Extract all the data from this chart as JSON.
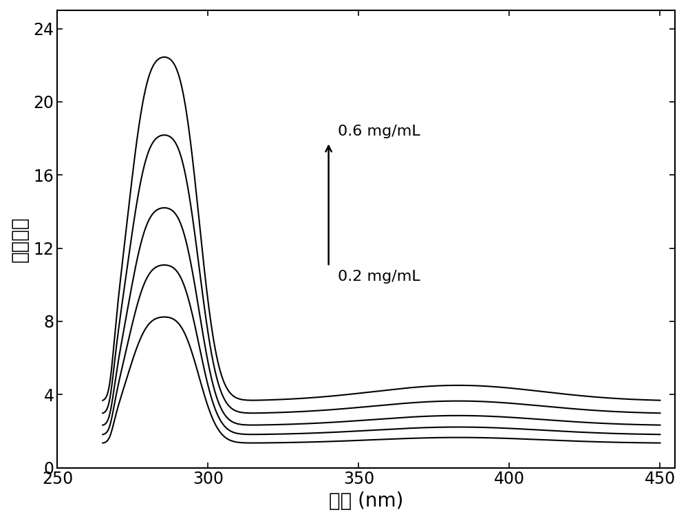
{
  "xlabel": "波长 (nm)",
  "ylabel": "荧光强度",
  "xlim": [
    250,
    455
  ],
  "ylim": [
    0,
    25
  ],
  "xticks": [
    250,
    300,
    350,
    400,
    450
  ],
  "yticks": [
    0,
    4,
    8,
    12,
    16,
    20,
    24
  ],
  "concentrations": [
    0.2,
    0.3,
    0.4,
    0.5,
    0.6
  ],
  "arrow_label_top": "0.6 mg/mL",
  "arrow_label_bottom": "0.2 mg/mL",
  "line_color": "#000000",
  "background_color": "#ffffff",
  "xlabel_fontsize": 20,
  "ylabel_fontsize": 20,
  "tick_fontsize": 17,
  "annotation_fontsize": 16,
  "scales": [
    5.8,
    7.8,
    10.0,
    12.8,
    15.8
  ]
}
